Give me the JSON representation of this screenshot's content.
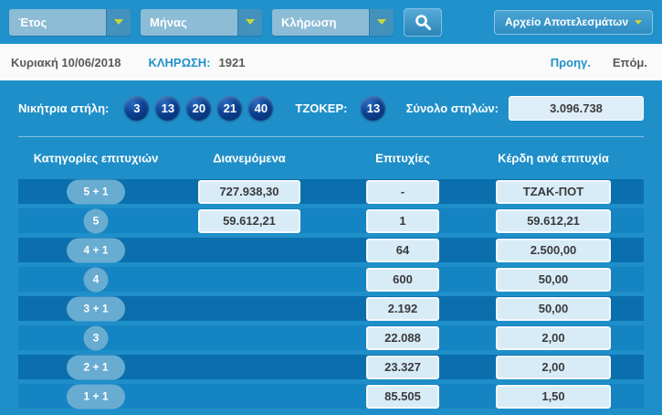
{
  "toolbar": {
    "filters": [
      {
        "label": "Έτος"
      },
      {
        "label": "Μήνας"
      },
      {
        "label": "Κλήρωση"
      }
    ],
    "search_icon": "magnifier-icon",
    "archive_label": "Αρχείο Αποτελεσμάτων"
  },
  "draw_info": {
    "date": "Κυριακή 10/06/2018",
    "draw_label": "ΚΛΗΡΩΣΗ:",
    "draw_number": "1921",
    "prev_label": "Προηγ.",
    "next_label": "Επόμ."
  },
  "results": {
    "winning_label": "Νικήτρια στήλη:",
    "numbers": [
      "3",
      "13",
      "20",
      "21",
      "40"
    ],
    "joker_label": "ΤΖΟΚΕΡ:",
    "joker_number": "13",
    "total_label": "Σύνολο στηλών:",
    "total_value": "3.096.738"
  },
  "table": {
    "headers": [
      "Κατηγορίες επιτυχιών",
      "Διανεμόμενα",
      "Επιτυχίες",
      "Κέρδη ανά επιτυχία"
    ],
    "rows": [
      {
        "category": "5 + 1",
        "distributed": "727.938,30",
        "wins": "-",
        "prize": "ΤΖΑΚ-ΠΟΤ"
      },
      {
        "category": "5",
        "distributed": "59.612,21",
        "wins": "1",
        "prize": "59.612,21"
      },
      {
        "category": "4 + 1",
        "distributed": "",
        "wins": "64",
        "prize": "2.500,00"
      },
      {
        "category": "4",
        "distributed": "",
        "wins": "600",
        "prize": "50,00"
      },
      {
        "category": "3 + 1",
        "distributed": "",
        "wins": "2.192",
        "prize": "50,00"
      },
      {
        "category": "3",
        "distributed": "",
        "wins": "22.088",
        "prize": "2,00"
      },
      {
        "category": "2 + 1",
        "distributed": "",
        "wins": "23.327",
        "prize": "2,00"
      },
      {
        "category": "1 + 1",
        "distributed": "",
        "wins": "85.505",
        "prize": "1,50"
      }
    ]
  },
  "colors": {
    "topbar_blue": "#2191cb",
    "panel_blue": "#1f8fc9",
    "row_dark": "#0b6fad",
    "row_light": "#1584c2",
    "ball_navy": "#083a7e",
    "badge_blue": "#69acd1",
    "value_box": "#d8ecf7",
    "caret_yellow": "#c9d83a",
    "link_blue": "#2191cb"
  }
}
